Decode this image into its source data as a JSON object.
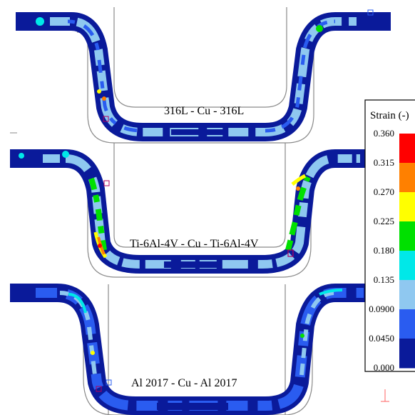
{
  "panels": [
    {
      "label": "316L - Cu - 316L"
    },
    {
      "label": "Ti-6Al-4V - Cu - Ti-6Al-4V"
    },
    {
      "label": "Al 2017 - Cu - Al  2017"
    }
  ],
  "legend": {
    "title": "Strain (-)",
    "ticks": [
      "0.360",
      "0.315",
      "0.270",
      "0.225",
      "0.180",
      "0.135",
      "0.0900",
      "0.0450",
      "0.000"
    ],
    "colors": [
      "#ff0000",
      "#ff8000",
      "#ffff00",
      "#00e000",
      "#00e8e8",
      "#8fc8f0",
      "#2a5cf0",
      "#0a1a9a"
    ]
  },
  "colors": {
    "dark_blue": "#0a1a9a",
    "blue": "#2a5cf0",
    "light_blue": "#8fc8f0",
    "cyan": "#00e8e8",
    "green": "#00e000",
    "yellow": "#ffff00",
    "orange": "#ff8000",
    "red": "#ff0000",
    "outline": "#8a8a8a"
  }
}
